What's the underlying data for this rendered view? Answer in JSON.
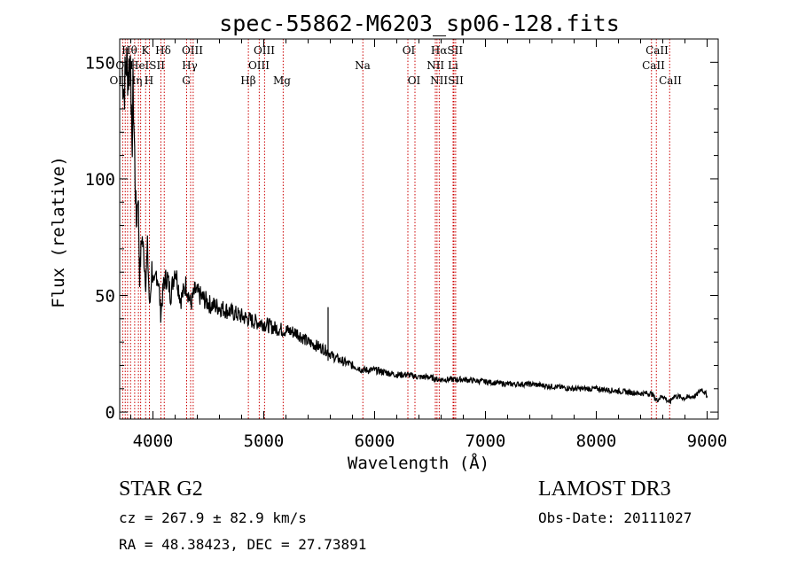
{
  "chart_data": {
    "type": "line",
    "title": "spec-55862-M6203_sp06-128.fits",
    "xlabel": "Wavelength (Å)",
    "ylabel": "Flux (relative)",
    "xlim": [
      3700,
      9100
    ],
    "ylim": [
      -3,
      160
    ],
    "x_ticks": [
      4000,
      5000,
      6000,
      7000,
      8000,
      9000
    ],
    "x_tick_labels": [
      "4000",
      "5000",
      "6000",
      "7000",
      "8000",
      "9000"
    ],
    "y_ticks": [
      0,
      50,
      100,
      150
    ],
    "y_tick_labels": [
      "0",
      "50",
      "100",
      "150"
    ],
    "grid": false,
    "series": [
      {
        "name": "spectrum",
        "x": [
          3720,
          3740,
          3760,
          3780,
          3800,
          3810,
          3820,
          3835,
          3850,
          3865,
          3880,
          3900,
          3920,
          3935,
          3950,
          3970,
          3990,
          4010,
          4030,
          4050,
          4070,
          4100,
          4130,
          4160,
          4200,
          4250,
          4300,
          4340,
          4380,
          4420,
          4470,
          4520,
          4600,
          4700,
          4800,
          4861,
          4900,
          5000,
          5100,
          5200,
          5300,
          5400,
          5500,
          5580,
          5620,
          5700,
          5800,
          5900,
          6000,
          6100,
          6200,
          6300,
          6400,
          6500,
          6563,
          6650,
          6800,
          7000,
          7200,
          7400,
          7600,
          7800,
          8000,
          8200,
          8400,
          8500,
          8542,
          8600,
          8662,
          8700,
          8800,
          8900,
          8950,
          9000
        ],
        "values": [
          148,
          138,
          150,
          145,
          155,
          106,
          140,
          110,
          80,
          96,
          58,
          76,
          66,
          56,
          70,
          44,
          62,
          52,
          60,
          56,
          42,
          56,
          58,
          50,
          62,
          48,
          55,
          46,
          52,
          50,
          48,
          46,
          45,
          43,
          41,
          40,
          39,
          38,
          36,
          35,
          34,
          30,
          28,
          26,
          24,
          22,
          20,
          18,
          18,
          17,
          16,
          16,
          15,
          15,
          14,
          14,
          14,
          13,
          12,
          12,
          11,
          10,
          10,
          9,
          8,
          8,
          5,
          7,
          4,
          7,
          6,
          7,
          10,
          7
        ]
      }
    ],
    "reference_lines": [
      {
        "x": 3727,
        "label": "OII"
      },
      {
        "x": 3750,
        "label": "OII"
      },
      {
        "x": 3771,
        "label": "Hθ"
      },
      {
        "x": 3798,
        "label": "Hη"
      },
      {
        "x": 3835,
        "label": "Hη"
      },
      {
        "x": 3869,
        "label": "He"
      },
      {
        "x": 3889,
        "label": "He"
      },
      {
        "x": 3934,
        "label": "K"
      },
      {
        "x": 3968,
        "label": "H"
      },
      {
        "x": 4072,
        "label": "SII"
      },
      {
        "x": 4102,
        "label": "Hδ"
      },
      {
        "x": 4304,
        "label": "G"
      },
      {
        "x": 4340,
        "label": "Hγ"
      },
      {
        "x": 4363,
        "label": "OIII"
      },
      {
        "x": 4861,
        "label": "Hβ"
      },
      {
        "x": 4959,
        "label": "OIII"
      },
      {
        "x": 5007,
        "label": "OIII"
      },
      {
        "x": 5175,
        "label": "Mg"
      },
      {
        "x": 5894,
        "label": "Na"
      },
      {
        "x": 6300,
        "label": "OI"
      },
      {
        "x": 6364,
        "label": "OI"
      },
      {
        "x": 6548,
        "label": "NII"
      },
      {
        "x": 6563,
        "label": "Hα"
      },
      {
        "x": 6583,
        "label": "NII"
      },
      {
        "x": 6708,
        "label": "Li"
      },
      {
        "x": 6716,
        "label": "SII"
      },
      {
        "x": 6731,
        "label": "SII"
      },
      {
        "x": 8498,
        "label": "CaII"
      },
      {
        "x": 8542,
        "label": "CaII"
      },
      {
        "x": 8662,
        "label": "CaII"
      }
    ],
    "line_color": "#000000",
    "reference_line_color": "#cc0000"
  },
  "line_labels": [
    {
      "text": "Hθ"
    },
    {
      "text": "K"
    },
    {
      "text": "Hδ"
    },
    {
      "text": "OIII"
    },
    {
      "text": "OIII"
    },
    {
      "text": "OI"
    },
    {
      "text": "HαSII"
    },
    {
      "text": "CaII"
    },
    {
      "text": "OII"
    },
    {
      "text": "HeISII"
    },
    {
      "text": "Hγ"
    },
    {
      "text": "OIII"
    },
    {
      "text": "Na"
    },
    {
      "text": "NII Li"
    },
    {
      "text": "CaII"
    },
    {
      "text": "OIIHη"
    },
    {
      "text": "H"
    },
    {
      "text": "G"
    },
    {
      "text": "Hβ"
    },
    {
      "text": "Mg"
    },
    {
      "text": "OI"
    },
    {
      "text": "NIISII"
    },
    {
      "text": "CaII"
    }
  ],
  "info": {
    "object": "STAR    G2",
    "survey": "LAMOST DR3",
    "cz": "cz = 267.9 ± 82.9 km/s",
    "obs_date": "Obs-Date: 20111027",
    "radec": "RA =  48.38423, DEC =  27.73891"
  }
}
